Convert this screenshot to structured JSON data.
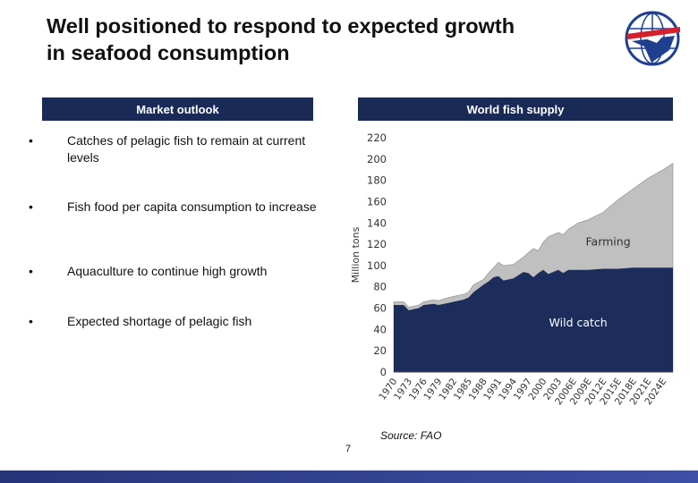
{
  "title": {
    "line1": "Well positioned to respond to expected growth",
    "line2": "in seafood consumption"
  },
  "headers": {
    "left": "Market outlook",
    "right": "World fish supply"
  },
  "bullets": [
    {
      "marker": "•",
      "text": "Catches of pelagic fish to remain at current levels"
    },
    {
      "marker": "•",
      "text": "Fish food per capita consumption to increase"
    },
    {
      "marker": "•",
      "text": "Aquaculture to continue high growth"
    },
    {
      "marker": "•",
      "text": "Expected shortage of pelagic fish"
    }
  ],
  "chart_data": {
    "type": "area",
    "stacked": false,
    "ylabel": "Million tons",
    "ylim": [
      0,
      220
    ],
    "yticks": [
      0,
      20,
      40,
      60,
      80,
      100,
      120,
      140,
      160,
      180,
      200,
      220
    ],
    "grid": false,
    "x_tick_labels": [
      "1970",
      "1973",
      "1976",
      "1979",
      "1982",
      "1985",
      "1988",
      "1991",
      "1994",
      "1997",
      "2000",
      "2003",
      "2006E",
      "2009E",
      "2012E",
      "2015E",
      "2018E",
      "2021E",
      "2024E"
    ],
    "x": [
      1970,
      1972,
      1973,
      1975,
      1976,
      1978,
      1979,
      1981,
      1982,
      1984,
      1985,
      1986,
      1988,
      1989,
      1990,
      1991,
      1992,
      1994,
      1996,
      1997,
      1998,
      1999,
      2000,
      2001,
      2003,
      2004,
      2005,
      2007,
      2009,
      2012,
      2015,
      2018,
      2021,
      2024,
      2026
    ],
    "series": [
      {
        "name": "Farming",
        "label": "Farming",
        "color": "#c0c0c0",
        "values": [
          66,
          66,
          61,
          63,
          66,
          68,
          67,
          70,
          71,
          73,
          75,
          82,
          87,
          93,
          98,
          103,
          100,
          101,
          108,
          112,
          116,
          114,
          122,
          127,
          131,
          129,
          134,
          140,
          143,
          150,
          162,
          172,
          182,
          190,
          196
        ]
      },
      {
        "name": "Wild catch",
        "label": "Wild catch",
        "color": "#1c2d5c",
        "values": [
          63,
          63,
          58,
          60,
          63,
          64,
          63,
          65,
          66,
          68,
          70,
          75,
          82,
          85,
          89,
          90,
          86,
          88,
          94,
          93,
          89,
          93,
          96,
          92,
          96,
          93,
          96,
          96,
          96,
          97,
          97,
          98,
          98,
          98,
          98
        ]
      }
    ]
  },
  "source": "Source: FAO",
  "page_number": "7",
  "colors": {
    "header_bg": "#1a2a57",
    "wild_catch": "#1c2d5c",
    "farming": "#c0c0c0",
    "footer": "#2f3f8f",
    "logo_blue": "#1f3f8f",
    "logo_red": "#d4202b"
  }
}
